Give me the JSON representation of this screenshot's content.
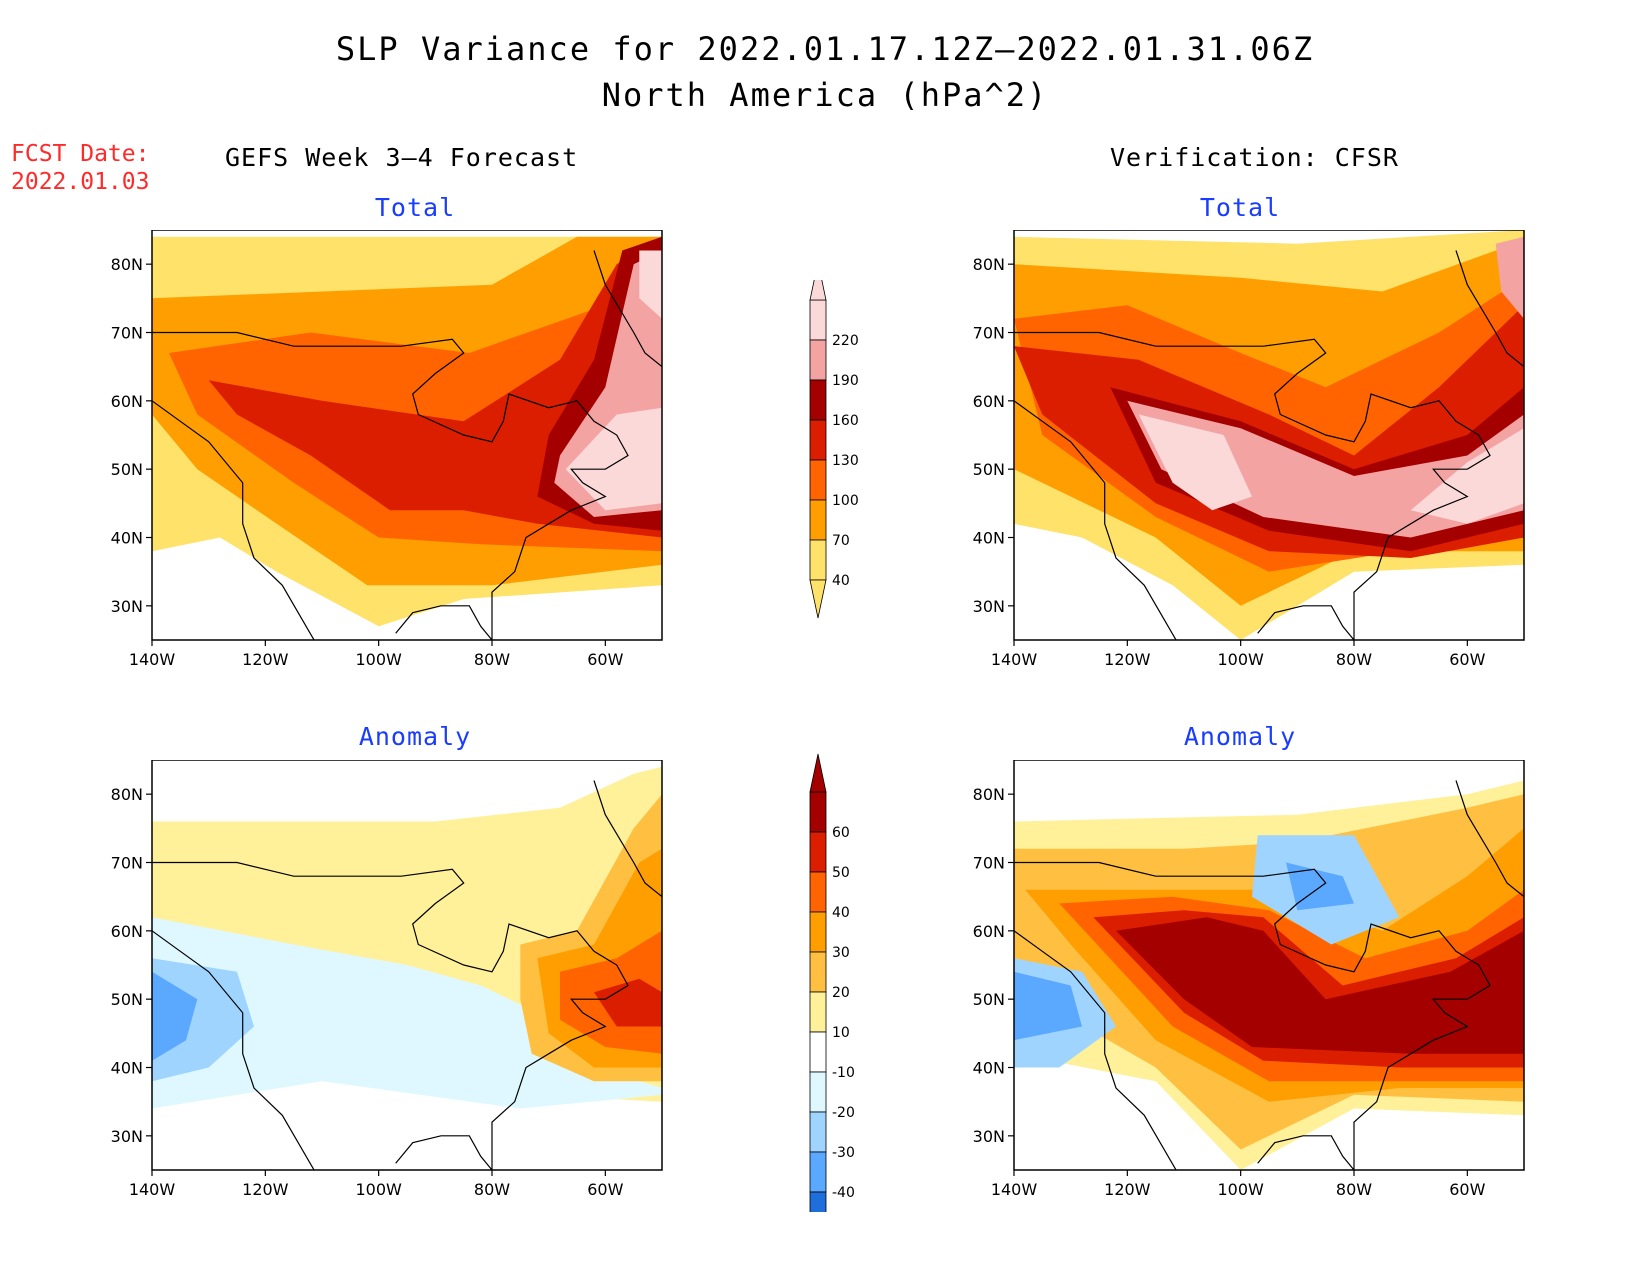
{
  "header": {
    "title_line1": "SLP Variance for 2022.01.17.12Z–2022.01.31.06Z",
    "title_line2": "North America (hPa^2)",
    "fcst_label": "FCST Date:",
    "fcst_date": "2022.01.03",
    "left_column": "GEFS Week 3–4 Forecast",
    "right_column": "Verification: CFSR"
  },
  "axes": {
    "lat_labels": [
      "80N",
      "70N",
      "60N",
      "50N",
      "40N",
      "30N"
    ],
    "lon_labels": [
      "140W",
      "120W",
      "100W",
      "80W",
      "60W"
    ],
    "lat_values": [
      80,
      70,
      60,
      50,
      40,
      30
    ],
    "lon_values": [
      -140,
      -120,
      -100,
      -80,
      -60
    ],
    "lat_range": [
      25,
      85
    ],
    "lon_range": [
      -140,
      -50
    ]
  },
  "panels": [
    {
      "id": "forecast-total",
      "subtitle": "Total",
      "field": "total",
      "case": "forecast"
    },
    {
      "id": "verification-total",
      "subtitle": "Total",
      "field": "total",
      "case": "verification"
    },
    {
      "id": "forecast-anomaly",
      "subtitle": "Anomaly",
      "field": "anomaly",
      "case": "forecast"
    },
    {
      "id": "verification-anomaly",
      "subtitle": "Anomaly",
      "field": "anomaly",
      "case": "verification"
    }
  ],
  "colorbars": {
    "total": {
      "labels": [
        "220",
        "190",
        "160",
        "130",
        "100",
        "70",
        "40"
      ],
      "colors": [
        "#fbd9d9",
        "#f4a3a3",
        "#a50000",
        "#dc1e00",
        "#ff6400",
        "#ff9e00",
        "#ffe26a"
      ]
    },
    "anomaly": {
      "labels": [
        "60",
        "50",
        "40",
        "30",
        "20",
        "10",
        "-10",
        "-20",
        "-30",
        "-40"
      ],
      "colors": [
        "#a50000",
        "#dc1e00",
        "#ff6400",
        "#ff9e00",
        "#ffbf40",
        "#fff09a",
        "#ffffff",
        "#dff8ff",
        "#9fd4ff",
        "#5aa8ff",
        "#1e6edc"
      ]
    }
  }
}
